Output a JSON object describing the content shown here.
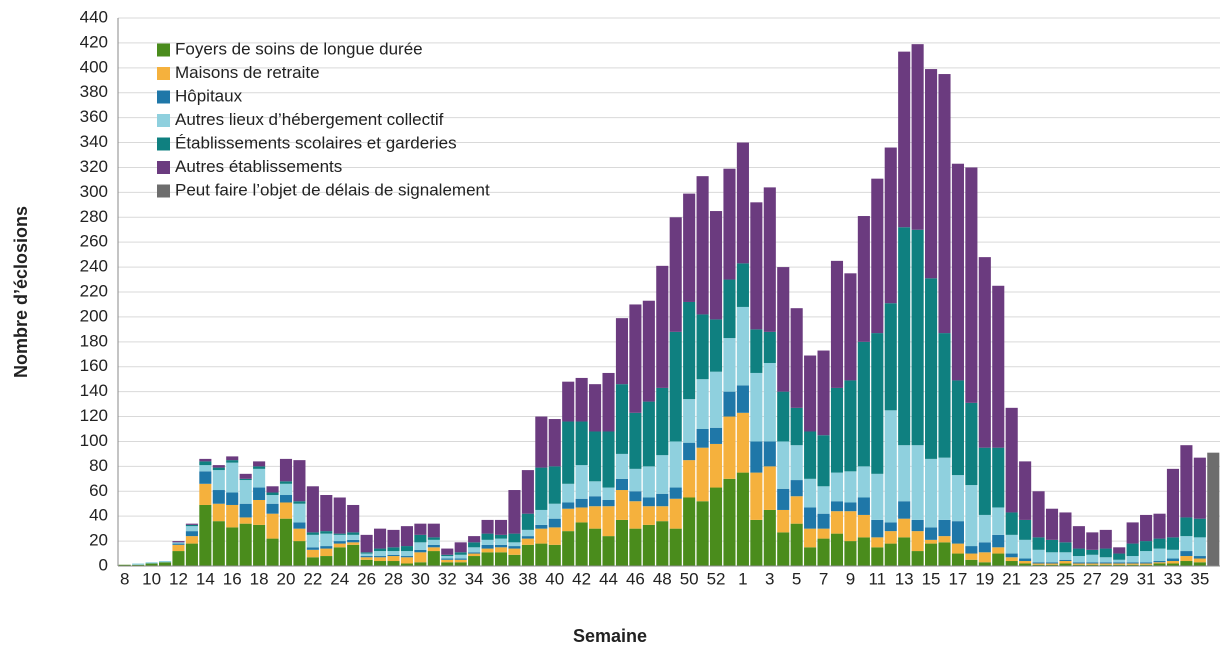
{
  "chart_data": {
    "type": "bar",
    "stacked": true,
    "x_label": "Semaine",
    "y_label": "Nombre d’éclosions",
    "categories": [
      "8",
      null,
      "10",
      null,
      "12",
      null,
      "14",
      null,
      "16",
      null,
      "18",
      null,
      "20",
      null,
      "22",
      null,
      "24",
      null,
      "26",
      null,
      "28",
      null,
      "30",
      null,
      "32",
      null,
      "34",
      null,
      "36",
      null,
      "38",
      null,
      "40",
      null,
      "42",
      null,
      "44",
      null,
      "46",
      null,
      "48",
      null,
      "50",
      null,
      "52",
      null,
      "1",
      null,
      "3",
      null,
      "5",
      null,
      "7",
      null,
      "9",
      null,
      "11",
      null,
      "13",
      null,
      "15",
      null,
      "17",
      null,
      "19",
      null,
      "21",
      null,
      "23",
      null,
      "25",
      null,
      "27",
      null,
      "29",
      null,
      "31",
      null,
      "33",
      null,
      "35",
      null
    ],
    "ylim": [
      0,
      440
    ],
    "yticks": [
      0,
      20,
      40,
      60,
      80,
      100,
      120,
      140,
      160,
      180,
      200,
      220,
      240,
      260,
      280,
      300,
      320,
      340,
      360,
      380,
      400,
      420,
      440
    ],
    "grid": true,
    "legend": "upper left",
    "series": [
      {
        "name": "Foyers de soins de longue durée",
        "color": "#4a8c1c",
        "values": [
          1,
          1,
          2,
          3,
          12,
          18,
          49,
          36,
          31,
          34,
          33,
          22,
          38,
          20,
          7,
          8,
          15,
          17,
          5,
          4,
          4,
          2,
          3,
          12,
          3,
          3,
          8,
          11,
          11,
          9,
          17,
          18,
          17,
          28,
          35,
          30,
          24,
          37,
          30,
          33,
          36,
          30,
          55,
          52,
          63,
          70,
          75,
          37,
          45,
          27,
          34,
          15,
          22,
          26,
          20,
          23,
          15,
          18,
          23,
          12,
          18,
          19,
          10,
          5,
          3,
          10,
          4,
          2,
          1,
          1,
          2,
          1,
          1,
          1,
          1,
          1,
          1,
          2,
          2,
          4,
          3,
          null
        ]
      },
      {
        "name": "Maisons de retraite",
        "color": "#f5b13d",
        "values": [
          0,
          0,
          0,
          0,
          5,
          6,
          17,
          14,
          18,
          5,
          20,
          20,
          13,
          10,
          6,
          6,
          3,
          2,
          2,
          3,
          4,
          5,
          8,
          3,
          2,
          2,
          2,
          3,
          4,
          5,
          5,
          12,
          14,
          18,
          12,
          18,
          24,
          24,
          22,
          15,
          12,
          24,
          30,
          43,
          35,
          50,
          48,
          38,
          35,
          18,
          22,
          15,
          8,
          18,
          24,
          18,
          8,
          10,
          15,
          16,
          3,
          5,
          8,
          5,
          8,
          5,
          3,
          2,
          1,
          1,
          2,
          1,
          1,
          1,
          1,
          1,
          1,
          1,
          2,
          4,
          3,
          null
        ]
      },
      {
        "name": "Hôpitaux",
        "color": "#1f77a8",
        "values": [
          0,
          0,
          0,
          0,
          1,
          4,
          10,
          11,
          10,
          11,
          10,
          8,
          6,
          5,
          2,
          2,
          2,
          2,
          1,
          1,
          1,
          1,
          2,
          2,
          1,
          1,
          1,
          3,
          2,
          2,
          2,
          3,
          7,
          5,
          7,
          8,
          5,
          9,
          8,
          7,
          10,
          9,
          14,
          15,
          13,
          20,
          22,
          25,
          20,
          17,
          13,
          17,
          12,
          8,
          7,
          14,
          14,
          7,
          14,
          9,
          10,
          13,
          18,
          6,
          8,
          10,
          3,
          2,
          1,
          1,
          1,
          1,
          1,
          1,
          1,
          1,
          1,
          1,
          2,
          4,
          2,
          null
        ]
      },
      {
        "name": "Autres lieux d’hébergement collectif",
        "color": "#8fd0de",
        "values": [
          0,
          1,
          1,
          1,
          1,
          4,
          5,
          16,
          24,
          19,
          15,
          7,
          9,
          15,
          10,
          10,
          5,
          4,
          2,
          4,
          3,
          4,
          6,
          4,
          2,
          3,
          4,
          4,
          5,
          3,
          5,
          12,
          12,
          15,
          27,
          12,
          10,
          20,
          18,
          25,
          31,
          37,
          35,
          40,
          45,
          43,
          63,
          55,
          63,
          38,
          28,
          23,
          22,
          23,
          25,
          25,
          37,
          90,
          45,
          60,
          55,
          50,
          37,
          49,
          22,
          22,
          15,
          15,
          10,
          8,
          6,
          5,
          6,
          4,
          2,
          5,
          9,
          10,
          7,
          12,
          15,
          null
        ]
      },
      {
        "name": "Établissements scolaires et garderies",
        "color": "#0f8080",
        "values": [
          0,
          0,
          0,
          0,
          0,
          1,
          3,
          2,
          2,
          1,
          2,
          2,
          2,
          2,
          2,
          2,
          1,
          2,
          1,
          2,
          3,
          4,
          6,
          2,
          1,
          2,
          4,
          5,
          3,
          7,
          13,
          34,
          30,
          50,
          35,
          40,
          45,
          56,
          45,
          52,
          54,
          88,
          78,
          52,
          42,
          47,
          35,
          35,
          25,
          40,
          30,
          38,
          41,
          68,
          73,
          100,
          113,
          86,
          175,
          173,
          145,
          100,
          76,
          66,
          54,
          48,
          18,
          16,
          10,
          10,
          8,
          6,
          4,
          7,
          5,
          10,
          8,
          8,
          10,
          15,
          15,
          null
        ]
      },
      {
        "name": "Autres établissements",
        "color": "#6b3b7f",
        "values": [
          0,
          0,
          0,
          0,
          1,
          1,
          2,
          2,
          3,
          4,
          4,
          5,
          18,
          33,
          37,
          29,
          29,
          22,
          14,
          16,
          14,
          16,
          9,
          11,
          5,
          8,
          5,
          11,
          12,
          35,
          35,
          41,
          38,
          32,
          35,
          38,
          47,
          53,
          87,
          81,
          98,
          92,
          87,
          111,
          87,
          89,
          97,
          102,
          116,
          100,
          80,
          61,
          68,
          102,
          86,
          101,
          124,
          125,
          141,
          149,
          168,
          208,
          174,
          189,
          153,
          130,
          84,
          47,
          37,
          25,
          24,
          18,
          14,
          15,
          5,
          17,
          21,
          20,
          55,
          58,
          49,
          null
        ]
      },
      {
        "name": "Peut faire l’objet de délais de signalement",
        "color": "#6d6d6d",
        "values": [
          null,
          null,
          null,
          null,
          null,
          null,
          null,
          null,
          null,
          null,
          null,
          null,
          null,
          null,
          null,
          null,
          null,
          null,
          null,
          null,
          null,
          null,
          null,
          null,
          null,
          null,
          null,
          null,
          null,
          null,
          null,
          null,
          null,
          null,
          null,
          null,
          null,
          null,
          null,
          null,
          null,
          null,
          null,
          null,
          null,
          null,
          null,
          null,
          null,
          null,
          null,
          null,
          null,
          null,
          null,
          null,
          null,
          null,
          null,
          null,
          null,
          null,
          null,
          null,
          null,
          null,
          null,
          null,
          null,
          null,
          null,
          null,
          null,
          null,
          null,
          null,
          null,
          null,
          null,
          null,
          null,
          91
        ]
      }
    ]
  }
}
